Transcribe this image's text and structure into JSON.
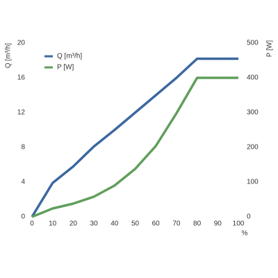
{
  "chart_data": {
    "type": "line",
    "x": [
      0,
      10,
      20,
      30,
      40,
      50,
      60,
      70,
      80,
      90,
      100
    ],
    "xlim": [
      0,
      100
    ],
    "xticks": [
      0,
      10,
      20,
      30,
      40,
      50,
      60,
      70,
      80,
      90,
      100
    ],
    "xlabel": "%",
    "ylabel": "Q [m³/h]",
    "ylim": [
      0,
      20
    ],
    "yticks": [
      0,
      4,
      8,
      12,
      16,
      20
    ],
    "y2label": "P [W]",
    "y2lim": [
      0,
      500
    ],
    "y2ticks": [
      0,
      100,
      200,
      300,
      400,
      500
    ],
    "legend": "upper left",
    "grid": false,
    "series": [
      {
        "name": "Q [m³/h]",
        "color": "#3b68a0",
        "values": [
          0,
          3.9,
          5.8,
          8.1,
          10,
          12,
          14,
          16,
          18.2,
          18.2,
          18.2
        ]
      },
      {
        "name": "P [W]",
        "color": "#5f9e5b",
        "axis": "y2",
        "values": [
          0,
          24,
          38,
          58,
          90,
          138,
          204,
          298,
          400,
          400,
          400
        ]
      }
    ]
  }
}
